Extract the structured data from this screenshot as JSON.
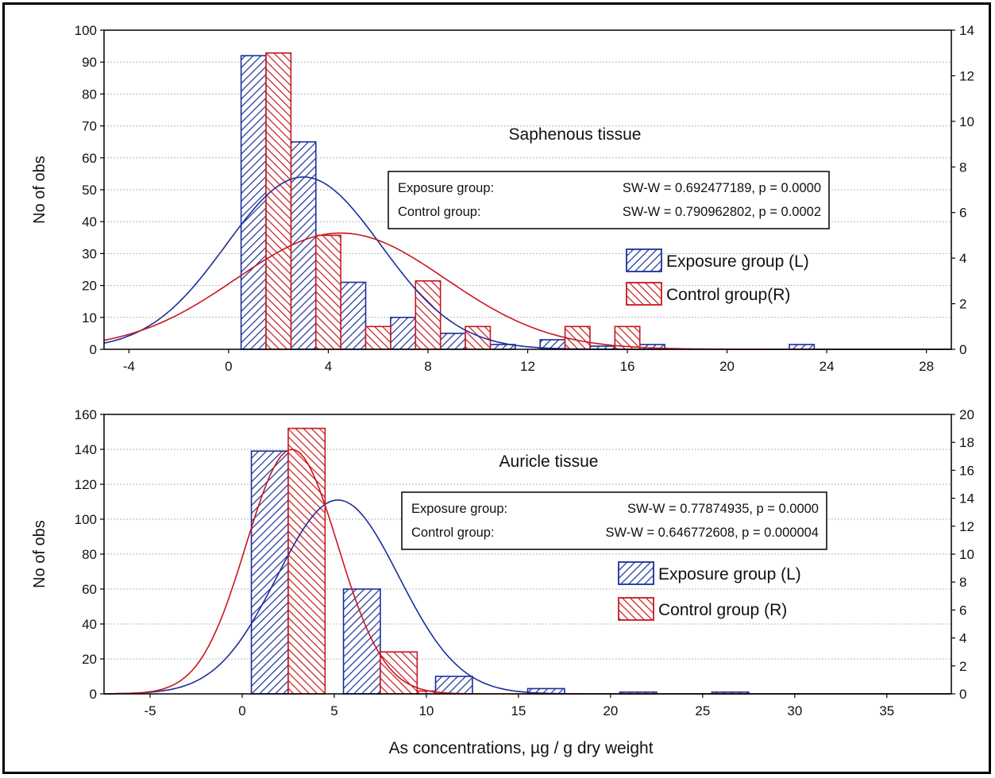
{
  "x_axis_label": "As concentrations, µg / g dry weight",
  "colors": {
    "exposure": "#1a2f9a",
    "control": "#c8171d",
    "grid": "#b4b4b4"
  },
  "chart_data": [
    {
      "type": "bar",
      "title": "Saphenous tissue",
      "ylabel": "No of obs",
      "xlabel": "",
      "xlim": [
        -5,
        29
      ],
      "ylim": [
        0,
        100
      ],
      "ylim_right": [
        0,
        14
      ],
      "x_ticks": [
        -4,
        0,
        4,
        8,
        12,
        16,
        20,
        24,
        28
      ],
      "y_ticks": [
        0,
        10,
        20,
        30,
        40,
        50,
        60,
        70,
        80,
        90,
        100
      ],
      "y_ticks_right": [
        0,
        2,
        4,
        6,
        8,
        10,
        12,
        14
      ],
      "grid": true,
      "legend_position": "right-middle",
      "stats": [
        {
          "group": "Exposure group:",
          "text": "SW-W = 0.692477189, p = 0.0000"
        },
        {
          "group": "Control group:",
          "text": "SW-W = 0.790962802, p = 0.0002"
        }
      ],
      "series": [
        {
          "name": "Exposure group (L)",
          "axis": "left",
          "bins": [
            [
              0.5,
              1.5,
              92
            ],
            [
              2.5,
              3.5,
              65
            ],
            [
              4.5,
              5.5,
              21
            ],
            [
              6.5,
              7.5,
              10
            ],
            [
              8.5,
              9.5,
              5
            ],
            [
              10.5,
              11.5,
              1.5
            ],
            [
              12.5,
              13.5,
              3
            ],
            [
              14.5,
              15.5,
              1
            ],
            [
              16.5,
              17.5,
              1.5
            ],
            [
              22.5,
              23.5,
              1.5
            ]
          ],
          "curve": {
            "mean": 3,
            "sd": 3.1,
            "peak": 54
          }
        },
        {
          "name": "Control group(R)",
          "axis": "right",
          "bins": [
            [
              1.5,
              2.5,
              13
            ],
            [
              3.5,
              4.5,
              5
            ],
            [
              5.5,
              6.5,
              1
            ],
            [
              7.5,
              8.5,
              3
            ],
            [
              9.5,
              10.5,
              1
            ],
            [
              13.5,
              14.5,
              1
            ],
            [
              15.5,
              16.5,
              1
            ]
          ],
          "curve": {
            "mean": 4.5,
            "sd": 4.2,
            "peak": 5.1
          }
        }
      ]
    },
    {
      "type": "bar",
      "title": "Auricle tissue",
      "ylabel": "No of obs",
      "xlabel": "As concentrations, µg / g dry weight",
      "xlim": [
        -7.5,
        38.5
      ],
      "ylim": [
        0,
        160
      ],
      "ylim_right": [
        0,
        20
      ],
      "x_ticks": [
        -5,
        0,
        5,
        10,
        15,
        20,
        25,
        30,
        35
      ],
      "y_ticks": [
        0,
        20,
        40,
        60,
        80,
        100,
        120,
        140,
        160
      ],
      "y_ticks_right": [
        0,
        2,
        4,
        6,
        8,
        10,
        12,
        14,
        16,
        18,
        20
      ],
      "grid": true,
      "legend_position": "right-middle",
      "stats": [
        {
          "group": "Exposure group:",
          "text": "SW-W = 0.77874935, p = 0.0000"
        },
        {
          "group": "Control group:",
          "text": "SW-W = 0.646772608, p = 0.000004"
        }
      ],
      "series": [
        {
          "name": "Exposure group (L)",
          "axis": "left",
          "bins": [
            [
              0.5,
              2.5,
              139
            ],
            [
              5.5,
              7.5,
              60
            ],
            [
              10.5,
              12.5,
              10
            ],
            [
              15.5,
              17.5,
              3
            ],
            [
              20.5,
              22.5,
              1
            ],
            [
              25.5,
              27.5,
              1
            ]
          ],
          "curve": {
            "mean": 5.2,
            "sd": 3.3,
            "peak": 111
          }
        },
        {
          "name": "Control group (R)",
          "axis": "right",
          "bins": [
            [
              2.5,
              4.5,
              19
            ],
            [
              7.5,
              9.5,
              3
            ],
            [
              9.5,
              10.5,
              0.2
            ]
          ],
          "curve": {
            "mean": 2.7,
            "sd": 2.5,
            "peak": 17.5
          }
        }
      ]
    }
  ]
}
